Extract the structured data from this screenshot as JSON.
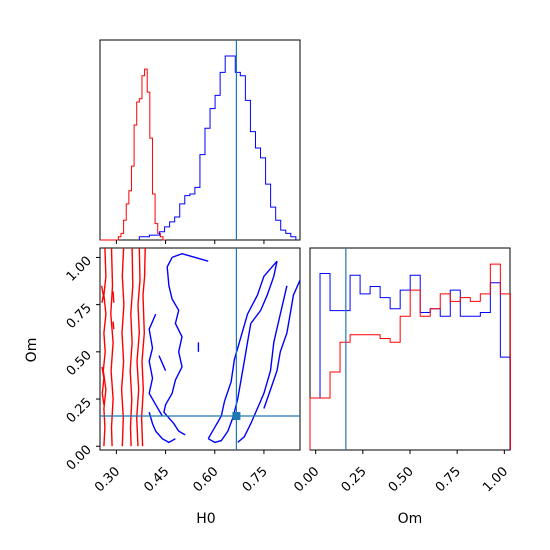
{
  "chart_data": [
    {
      "type": "histogram",
      "panel": "top-left",
      "variable": "H0",
      "xlim": [
        0.25,
        0.86
      ],
      "truth": 0.666,
      "truth_color": "#1f77b4",
      "series": [
        {
          "color": "#ff0000",
          "bin_start": 0.25,
          "bin_width": 0.008,
          "counts": [
            0,
            0,
            0,
            0,
            0,
            0,
            0,
            0.02,
            0.04,
            0.12,
            0.22,
            0.3,
            0.45,
            0.7,
            0.84,
            0.86,
            1.0,
            1.04,
            0.9,
            0.62,
            0.28,
            0.1,
            0.04,
            0.02,
            0
          ]
        },
        {
          "color": "#0000ff",
          "bin_start": 0.37,
          "bin_width": 0.0154,
          "counts": [
            0.02,
            0.02,
            0.03,
            0.03,
            0.05,
            0.08,
            0.11,
            0.14,
            0.22,
            0.27,
            0.28,
            0.32,
            0.52,
            0.68,
            0.8,
            0.88,
            1.02,
            1.12,
            1.12,
            1.02,
            1.0,
            0.85,
            0.66,
            0.56,
            0.5,
            0.34,
            0.2,
            0.12,
            0.06,
            0.04,
            0.02
          ]
        }
      ]
    },
    {
      "type": "contour",
      "panel": "bottom-left",
      "xlabel": "H0",
      "ylabel": "Om",
      "xlim": [
        0.25,
        0.86
      ],
      "ylim": [
        -0.02,
        1.05
      ],
      "xticks": [
        "0.30",
        "0.45",
        "0.60",
        "0.75"
      ],
      "xtick_values": [
        0.3,
        0.45,
        0.6,
        0.75
      ],
      "yticks": [
        "0.00",
        "0.25",
        "0.50",
        "0.75",
        "1.00"
      ],
      "ytick_values": [
        0.0,
        0.25,
        0.5,
        0.75,
        1.0
      ],
      "truth": {
        "x": 0.666,
        "y": 0.16
      },
      "truth_color": "#1f77b4",
      "series": [
        {
          "color": "#ff0000",
          "lines": [
            [
              [
                0.265,
                1.05
              ],
              [
                0.268,
                0.9
              ],
              [
                0.262,
                0.8
              ],
              [
                0.268,
                0.7
              ],
              [
                0.262,
                0.6
              ],
              [
                0.266,
                0.5
              ],
              [
                0.26,
                0.4
              ],
              [
                0.268,
                0.3
              ],
              [
                0.262,
                0.2
              ],
              [
                0.265,
                0.1
              ],
              [
                0.262,
                0.0
              ]
            ],
            [
              [
                0.285,
                1.05
              ],
              [
                0.288,
                0.85
              ],
              [
                0.283,
                0.7
              ],
              [
                0.29,
                0.55
              ],
              [
                0.284,
                0.4
              ],
              [
                0.29,
                0.25
              ],
              [
                0.285,
                0.1
              ],
              [
                0.287,
                0.0
              ]
            ],
            [
              [
                0.322,
                1.05
              ],
              [
                0.318,
                0.9
              ],
              [
                0.323,
                0.75
              ],
              [
                0.317,
                0.6
              ],
              [
                0.322,
                0.45
              ],
              [
                0.316,
                0.3
              ],
              [
                0.321,
                0.15
              ],
              [
                0.318,
                0.0
              ]
            ],
            [
              [
                0.348,
                1.05
              ],
              [
                0.35,
                0.85
              ],
              [
                0.344,
                0.7
              ],
              [
                0.348,
                0.55
              ],
              [
                0.342,
                0.4
              ],
              [
                0.347,
                0.25
              ],
              [
                0.343,
                0.1
              ],
              [
                0.345,
                0.0
              ]
            ],
            [
              [
                0.37,
                1.05
              ],
              [
                0.372,
                0.88
              ],
              [
                0.366,
                0.75
              ],
              [
                0.37,
                0.6
              ],
              [
                0.363,
                0.45
              ],
              [
                0.368,
                0.3
              ],
              [
                0.362,
                0.15
              ],
              [
                0.366,
                0.0
              ]
            ],
            [
              [
                0.388,
                1.05
              ],
              [
                0.386,
                0.9
              ],
              [
                0.381,
                0.8
              ],
              [
                0.385,
                0.6
              ],
              [
                0.378,
                0.45
              ],
              [
                0.382,
                0.3
              ],
              [
                0.377,
                0.15
              ],
              [
                0.38,
                0.0
              ]
            ],
            [
              [
                0.255,
                0.85
              ],
              [
                0.26,
                0.8
              ],
              [
                0.256,
                0.76
              ]
            ],
            [
              [
                0.256,
                0.42
              ],
              [
                0.262,
                0.36
              ],
              [
                0.257,
                0.28
              ],
              [
                0.262,
                0.22
              ]
            ],
            [
              [
                0.29,
                0.82
              ],
              [
                0.292,
                0.76
              ]
            ],
            [
              [
                0.29,
                0.66
              ],
              [
                0.292,
                0.62
              ]
            ]
          ]
        },
        {
          "color": "#0000ff",
          "lines": [
            [
              [
                0.47,
                1.0
              ],
              [
                0.455,
                0.95
              ],
              [
                0.46,
                0.85
              ],
              [
                0.47,
                0.78
              ],
              [
                0.49,
                0.72
              ],
              [
                0.48,
                0.65
              ],
              [
                0.5,
                0.58
              ],
              [
                0.49,
                0.5
              ],
              [
                0.5,
                0.42
              ],
              [
                0.48,
                0.35
              ],
              [
                0.47,
                0.28
              ],
              [
                0.45,
                0.22
              ],
              [
                0.445,
                0.18
              ],
              [
                0.46,
                0.15
              ],
              [
                0.475,
                0.12
              ],
              [
                0.49,
                0.08
              ],
              [
                0.51,
                0.06
              ]
            ],
            [
              [
                0.47,
                1.0
              ],
              [
                0.5,
                1.02
              ],
              [
                0.54,
                1.0
              ],
              [
                0.58,
                0.98
              ]
            ],
            [
              [
                0.42,
                0.7
              ],
              [
                0.4,
                0.62
              ],
              [
                0.41,
                0.52
              ],
              [
                0.4,
                0.45
              ],
              [
                0.41,
                0.36
              ],
              [
                0.4,
                0.28
              ],
              [
                0.42,
                0.22
              ],
              [
                0.44,
                0.16
              ]
            ],
            [
              [
                0.4,
                0.18
              ],
              [
                0.41,
                0.12
              ],
              [
                0.42,
                0.08
              ],
              [
                0.44,
                0.04
              ],
              [
                0.46,
                0.02
              ],
              [
                0.48,
                0.04
              ]
            ],
            [
              [
                0.43,
                0.48
              ],
              [
                0.44,
                0.44
              ],
              [
                0.45,
                0.4
              ]
            ],
            [
              [
                0.55,
                0.55
              ],
              [
                0.55,
                0.5
              ]
            ],
            [
              [
                0.82,
                0.85
              ],
              [
                0.8,
                0.7
              ],
              [
                0.78,
                0.55
              ],
              [
                0.77,
                0.4
              ],
              [
                0.75,
                0.28
              ],
              [
                0.73,
                0.2
              ],
              [
                0.71,
                0.12
              ],
              [
                0.69,
                0.05
              ],
              [
                0.67,
                0.02
              ]
            ],
            [
              [
                0.86,
                0.88
              ],
              [
                0.84,
                0.8
              ],
              [
                0.83,
                0.7
              ],
              [
                0.82,
                0.6
              ],
              [
                0.8,
                0.5
              ],
              [
                0.79,
                0.4
              ],
              [
                0.77,
                0.3
              ],
              [
                0.75,
                0.2
              ]
            ],
            [
              [
                0.79,
                0.98
              ],
              [
                0.78,
                0.9
              ],
              [
                0.76,
                0.8
              ],
              [
                0.74,
                0.72
              ],
              [
                0.71,
                0.65
              ],
              [
                0.7,
                0.55
              ],
              [
                0.69,
                0.45
              ],
              [
                0.68,
                0.35
              ],
              [
                0.67,
                0.25
              ],
              [
                0.655,
                0.15
              ],
              [
                0.64,
                0.08
              ],
              [
                0.62,
                0.03
              ],
              [
                0.6,
                0.02
              ],
              [
                0.58,
                0.04
              ]
            ],
            [
              [
                0.58,
                0.04
              ],
              [
                0.6,
                0.1
              ],
              [
                0.62,
                0.16
              ],
              [
                0.63,
                0.24
              ],
              [
                0.65,
                0.34
              ],
              [
                0.66,
                0.46
              ],
              [
                0.68,
                0.58
              ],
              [
                0.7,
                0.7
              ],
              [
                0.73,
                0.8
              ],
              [
                0.75,
                0.9
              ],
              [
                0.79,
                0.98
              ]
            ]
          ]
        }
      ]
    },
    {
      "type": "histogram",
      "panel": "bottom-right",
      "variable": "Om",
      "xlabel": "Om",
      "xlim": [
        -0.03,
        1.03
      ],
      "xticks": [
        "0.00",
        "0.25",
        "0.50",
        "0.75",
        "1.00"
      ],
      "xtick_values": [
        0.0,
        0.25,
        0.5,
        0.75,
        1.0
      ],
      "truth": 0.16,
      "truth_color": "#1f77b4",
      "series": [
        {
          "color": "#0000ff",
          "bin_start": -0.03,
          "bin_width": 0.0531,
          "counts": [
            0.28,
            0.95,
            0.75,
            0.75,
            0.94,
            0.84,
            0.88,
            0.82,
            0.76,
            0.86,
            0.94,
            0.74,
            0.76,
            0.72,
            0.86,
            0.72,
            0.72,
            0.74,
            0.9,
            0.5
          ]
        },
        {
          "color": "#ff0000",
          "bin_start": -0.03,
          "bin_width": 0.0531,
          "counts": [
            0.28,
            0.28,
            0.42,
            0.58,
            0.62,
            0.62,
            0.62,
            0.6,
            0.58,
            0.72,
            0.86,
            0.72,
            0.76,
            0.84,
            0.8,
            0.82,
            0.8,
            0.84,
            1.0,
            0.84
          ]
        }
      ]
    }
  ]
}
